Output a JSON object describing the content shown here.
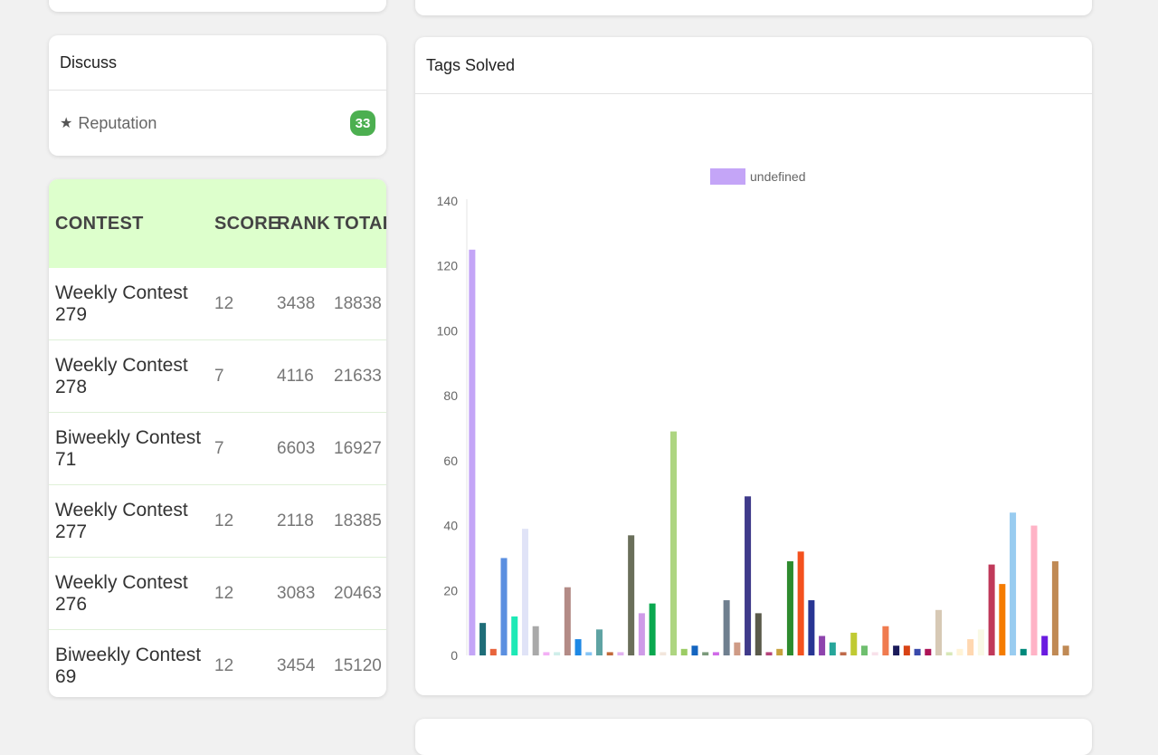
{
  "discuss": {
    "title": "Discuss",
    "reputation_label": "Reputation",
    "reputation_value": "33",
    "star_icon": "★"
  },
  "contests": {
    "headers": [
      "CONTEST",
      "SCORE",
      "RANK",
      "TOTAL"
    ],
    "rows": [
      {
        "name": "Weekly Contest 279",
        "score": "12",
        "rank": "3438",
        "total": "18838"
      },
      {
        "name": "Weekly Contest 278",
        "score": "7",
        "rank": "4116",
        "total": "21633"
      },
      {
        "name": "Biweekly Contest 71",
        "score": "7",
        "rank": "6603",
        "total": "16927"
      },
      {
        "name": "Weekly Contest 277",
        "score": "12",
        "rank": "2118",
        "total": "18385"
      },
      {
        "name": "Weekly Contest 276",
        "score": "12",
        "rank": "3083",
        "total": "20463"
      },
      {
        "name": "Biweekly Contest 69",
        "score": "12",
        "rank": "3454",
        "total": "15120"
      }
    ]
  },
  "tags": {
    "title": "Tags Solved"
  },
  "chart_data": {
    "type": "bar",
    "title": "Tags Solved",
    "legend_label": "undefined",
    "legend_color": "#c4a5f7",
    "ylim": [
      0,
      140
    ],
    "yticks": [
      "0",
      "20",
      "40",
      "60",
      "80",
      "100",
      "120",
      "140"
    ],
    "values": [
      125,
      10,
      2,
      30,
      12,
      39,
      9,
      1,
      1,
      21,
      5,
      1,
      8,
      1,
      1,
      37,
      13,
      16,
      1,
      69,
      2,
      3,
      1,
      1,
      17,
      4,
      49,
      13,
      1,
      2,
      29,
      32,
      17,
      6,
      4,
      1,
      7,
      3,
      1,
      9,
      3,
      3,
      2,
      2,
      14,
      1,
      2,
      5,
      8,
      28,
      22,
      44,
      2,
      40,
      6,
      29,
      3
    ],
    "colors": [
      "#c4a5f7",
      "#1f6d78",
      "#e8643c",
      "#5b8fe0",
      "#1de9b6",
      "#e0e3f7",
      "#a9a9a9",
      "#f3b0f5",
      "#cfeeea",
      "#b38b86",
      "#1e88e5",
      "#87c5f5",
      "#5fa3a3",
      "#c26a3a",
      "#e1b2f0",
      "#6a6f5a",
      "#cf9be8",
      "#0aa84f",
      "#f2e6dc",
      "#aed581",
      "#9ccc65",
      "#1565c0",
      "#7b9a7b",
      "#d06ae8",
      "#6f7f8f",
      "#cf9b86",
      "#3f3a8a",
      "#5a5a4a",
      "#b5447a",
      "#c8a23c",
      "#2e8b2e",
      "#f4511e",
      "#283593",
      "#8e44ad",
      "#26a69a",
      "#bf6a4a",
      "#c0ca33",
      "#6fbf6f",
      "#f8e1ea",
      "#f07b4f",
      "#1a1a5a",
      "#d84315",
      "#3949ab",
      "#ad1457",
      "#d7c9b5",
      "#d8e8b8",
      "#fff3d6",
      "#ffd7b0",
      "#f9f9e5",
      "#c0395a",
      "#f57c00",
      "#99ccf0",
      "#00897b",
      "#ffb3c6",
      "#6a1be0",
      "#c08a55",
      "#c08a55"
    ]
  }
}
